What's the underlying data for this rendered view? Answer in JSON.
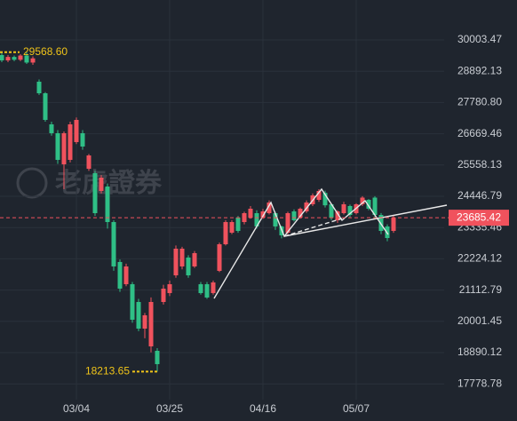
{
  "chart_data": {
    "type": "candlestick",
    "watermark": "老虎證券",
    "categories": [
      null,
      null,
      null,
      null,
      null,
      null,
      null,
      null,
      null,
      null,
      null,
      null,
      "03/04",
      null,
      null,
      null,
      null,
      null,
      null,
      null,
      null,
      null,
      null,
      null,
      null,
      null,
      null,
      "03/25",
      null,
      null,
      null,
      null,
      null,
      null,
      null,
      null,
      null,
      null,
      null,
      null,
      null,
      null,
      "04/16",
      null,
      null,
      null,
      null,
      null,
      null,
      null,
      null,
      null,
      null,
      null,
      null,
      null,
      null,
      "05/07",
      null,
      null,
      null,
      null,
      null,
      null
    ],
    "open": [
      29467,
      29277,
      29400,
      29300,
      29450,
      29200,
      28520,
      28109,
      27004,
      26689,
      25583,
      25741,
      26373,
      26689,
      25424,
      25268,
      24636,
      24794,
      23531,
      22111,
      21322,
      21322,
      20690,
      19743,
      19112,
      18954,
      20690,
      21006,
      21637,
      21953,
      22269,
      21953,
      21322,
      21322,
      21006,
      21795,
      22742,
      23153,
      23689,
      23531,
      23689,
      23847,
      23689,
      23847,
      23847,
      23374,
      23153,
      23910,
      23689,
      23910,
      24163,
      24321,
      24568,
      24163,
      23594,
      23847,
      24100,
      23847,
      24163,
      24321,
      24400,
      23784,
      23374,
      23216
    ],
    "high": [
      29560,
      29468,
      29450,
      29500,
      29568.6,
      29420,
      28600,
      28150,
      27100,
      26800,
      26750,
      27100,
      27250,
      26800,
      25950,
      25350,
      25200,
      24900,
      23600,
      22200,
      22050,
      21400,
      20800,
      20300,
      20850,
      19050,
      21300,
      21450,
      22700,
      22650,
      22350,
      22500,
      21400,
      21400,
      21450,
      22800,
      23600,
      23600,
      23750,
      23900,
      24100,
      23950,
      24000,
      24300,
      23900,
      23400,
      23900,
      23980,
      24050,
      24300,
      24550,
      24700,
      24650,
      24200,
      23950,
      24250,
      24150,
      24200,
      24450,
      24350,
      24450,
      23850,
      23450,
      23750
    ],
    "low": [
      29214,
      29214,
      29250,
      29250,
      29150,
      29120,
      28050,
      27100,
      26600,
      25600,
      24700,
      25650,
      26300,
      26100,
      25350,
      23750,
      24550,
      23300,
      21800,
      21050,
      21250,
      19950,
      19650,
      19400,
      18900,
      18213.65,
      20600,
      20900,
      21550,
      21850,
      21550,
      21900,
      20950,
      20800,
      20950,
      21750,
      22700,
      23100,
      23150,
      23450,
      23650,
      23300,
      23650,
      23800,
      23250,
      22950,
      23100,
      23550,
      23650,
      23850,
      24100,
      24250,
      24050,
      23600,
      23500,
      23800,
      23700,
      23800,
      24100,
      23950,
      23650,
      23100,
      22850,
      23150
    ],
    "close": [
      29277,
      29400,
      29300,
      29450,
      29200,
      29350,
      28109,
      27162,
      26689,
      25741,
      26689,
      27004,
      27162,
      26215,
      25899,
      23847,
      25110,
      23531,
      21953,
      21164,
      21953,
      20059,
      19743,
      20217,
      20690,
      18480,
      21164,
      21322,
      22584,
      22584,
      21637,
      22426,
      21006,
      20848,
      21385,
      22742,
      23531,
      23531,
      23216,
      23847,
      24005,
      23374,
      23910,
      24226,
      23374,
      23058,
      23847,
      23594,
      24005,
      24226,
      24479,
      24636,
      24126,
      23689,
      23910,
      24163,
      23784,
      24163,
      24400,
      24005,
      23784,
      23216,
      22963,
      23685.42
    ],
    "up_color": "#f0525d",
    "down_color": "#2fbf86",
    "ylim": [
      17217,
      31424
    ],
    "yticks": [
      30003.47,
      28892.13,
      {
        "value": 27780.8,
        "label": "27780.80"
      },
      26669.46,
      25558.13,
      24446.79,
      23335.46,
      22224.12,
      21112.79,
      20001.45,
      18890.12,
      17778.78
    ],
    "grid": true,
    "last_price": 23685.42,
    "high_marker": {
      "value": 29568.6,
      "label": "29568.60"
    },
    "low_marker": 18213.65
  }
}
